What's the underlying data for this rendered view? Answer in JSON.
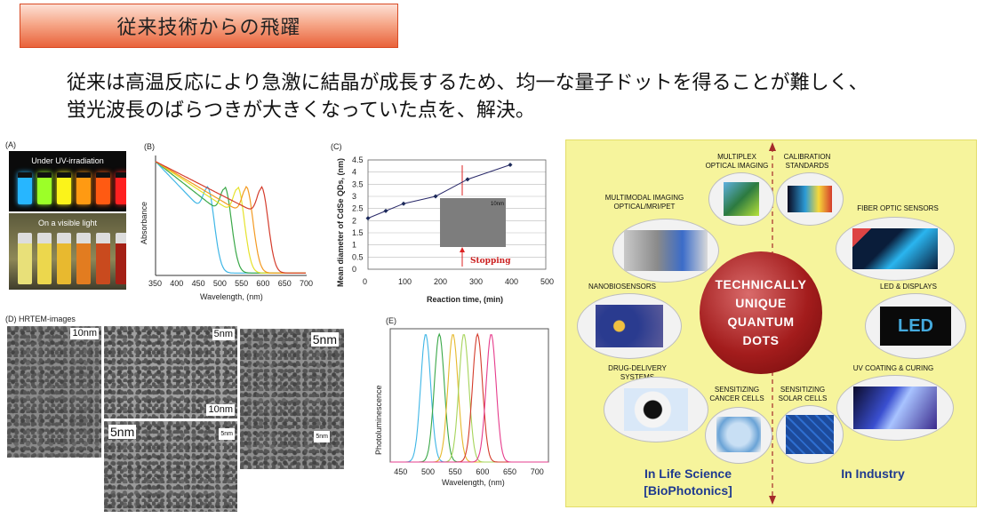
{
  "title": "従来技術からの飛躍",
  "headline": {
    "line1": "従来は高温反応により急激に結晶が成長するため、均一な量子ドットを得ることが難しく、",
    "line2": "蛍光波長のばらつきが大きくなっていた点を、解決。"
  },
  "panel_a": {
    "label": "(A)",
    "uv_caption": "Under UV-irradiation",
    "visible_caption": "On a visible light",
    "uv_colors": [
      "#27b6ff",
      "#9cff28",
      "#fbf31a",
      "#ff9a12",
      "#ff5a12",
      "#ff2020"
    ]
  },
  "panel_b": {
    "label": "(B)",
    "ylabel": "Absorbance",
    "xlabel": "Wavelength, (nm)",
    "xticks": [
      "350",
      "400",
      "450",
      "500",
      "550",
      "600",
      "650",
      "700"
    ]
  },
  "panel_c": {
    "label": "(C)",
    "ylabel": "Mean diameter of CdSe QDs, (nm)",
    "xlabel": "Reaction time, (min)",
    "yticks": [
      "0",
      "0.5",
      "1",
      "1.5",
      "2",
      "2.5",
      "3",
      "3.5",
      "4",
      "4.5"
    ],
    "xticks": [
      "0",
      "100",
      "200",
      "300",
      "400",
      "500"
    ],
    "annotation": "Stopping",
    "inset_scale": "10nm"
  },
  "panel_d": {
    "label": "(D)",
    "title": "HRTEM-images",
    "scales": [
      "10nm",
      "5nm",
      "10nm",
      "5nm",
      "5nm",
      "5nm",
      "5nm"
    ]
  },
  "panel_e": {
    "label": "(E)",
    "ylabel": "Photoluminescence",
    "xlabel": "Wavelength, (nm)",
    "xticks": [
      "450",
      "500",
      "550",
      "600",
      "650",
      "700"
    ]
  },
  "chart_data": [
    {
      "type": "line",
      "xlabel": "Wavelength, (nm)",
      "ylabel": "Absorbance",
      "xlim": [
        350,
        700
      ],
      "series": [
        {
          "color": "#3fb6e6",
          "peak_nm": 470
        },
        {
          "color": "#3aa848",
          "peak_nm": 510
        },
        {
          "color": "#e6e22c",
          "peak_nm": 540
        },
        {
          "color": "#f39a22",
          "peak_nm": 560
        },
        {
          "color": "#d43c2c",
          "peak_nm": 595
        }
      ]
    },
    {
      "type": "line",
      "xlabel": "Reaction time, (min)",
      "ylabel": "Mean diameter of CdSe QDs, (nm)",
      "xlim": [
        0,
        500
      ],
      "ylim": [
        0,
        4.5
      ],
      "x": [
        0,
        50,
        100,
        190,
        280,
        400
      ],
      "y": [
        2.1,
        2.4,
        2.7,
        3.0,
        3.7,
        4.3
      ]
    },
    {
      "type": "line",
      "xlabel": "Wavelength, (nm)",
      "ylabel": "Photoluminescence",
      "xlim": [
        430,
        720
      ],
      "series": [
        {
          "color": "#3fb6e6",
          "peak_nm": 495
        },
        {
          "color": "#3aa848",
          "peak_nm": 520
        },
        {
          "color": "#e6b92c",
          "peak_nm": 545
        },
        {
          "color": "#a6d45a",
          "peak_nm": 565
        },
        {
          "color": "#d43c2c",
          "peak_nm": 590
        },
        {
          "color": "#e63c8c",
          "peak_nm": 615
        }
      ]
    }
  ],
  "right_panel": {
    "center": [
      "TECHNICALLY",
      "UNIQUE",
      "QUANTUM",
      "DOTS"
    ],
    "items": [
      "MULTIPLEX OPTICAL IMAGING",
      "CALIBRATION STANDARDS",
      "MULTIMODAL IMAGING OPTICAL/MRI/PET",
      "FIBER OPTIC SENSORS",
      "NANOBIOSENSORS",
      "LED & DISPLAYS",
      "DRUG-DELIVERY SYSTEMS",
      "SENSITIZING CANCER CELLS",
      "SENSITIZING SOLAR CELLS",
      "UV COATING & CURING"
    ],
    "left_footer": [
      "In Life Science",
      "[BioPhotonics]"
    ],
    "right_footer": "In Industry",
    "led_text": "LED"
  }
}
